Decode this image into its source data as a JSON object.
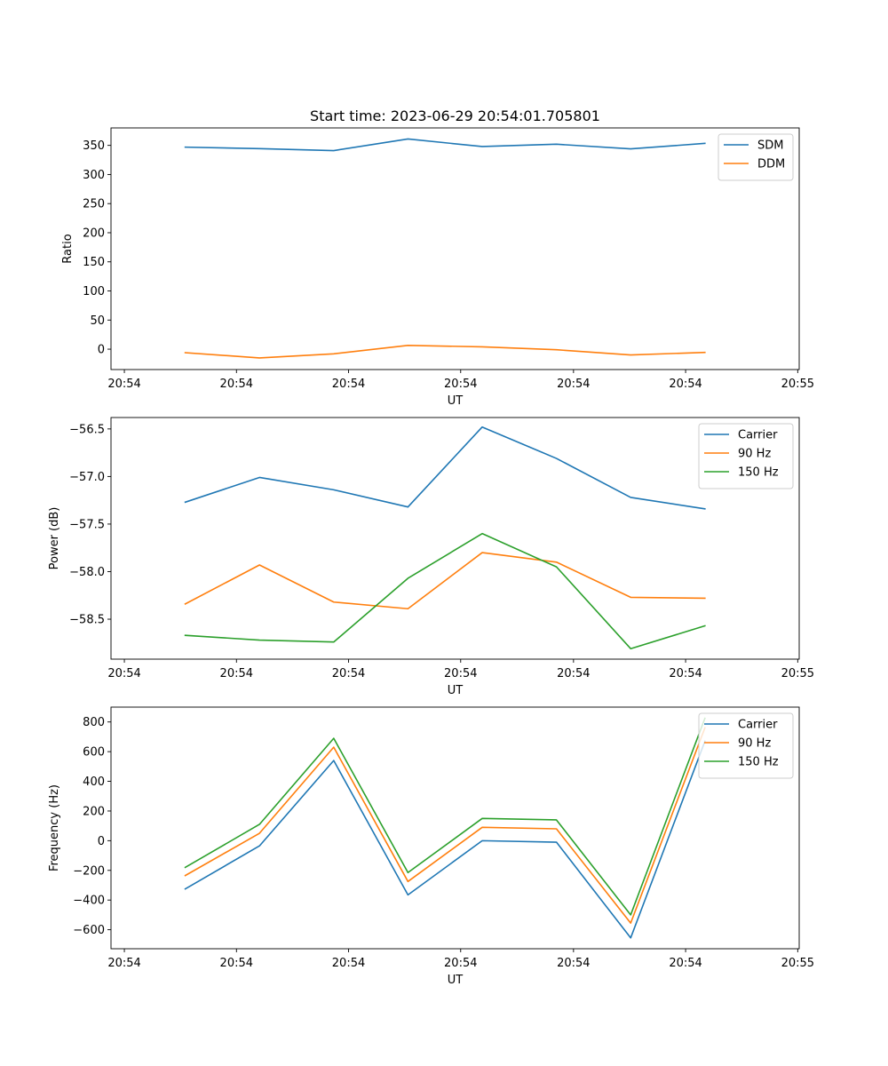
{
  "chart_data": [
    {
      "type": "line",
      "title": "Start time: 2023-06-29 20:54:01.705801",
      "xlabel": "UT",
      "ylabel": "Ratio",
      "x": [
        1,
        2,
        3,
        4,
        5,
        6,
        7,
        8
      ],
      "xlim": [
        0,
        9.27
      ],
      "x_ticks": [
        0.18,
        1.69,
        3.2,
        4.71,
        6.23,
        7.74,
        9.25
      ],
      "x_tick_labels": [
        "20:54",
        "20:54",
        "20:54",
        "20:54",
        "20:54",
        "20:54",
        "20:55"
      ],
      "ylim": [
        -35,
        380
      ],
      "y_ticks": [
        0,
        50,
        100,
        150,
        200,
        250,
        300,
        350
      ],
      "legend": "top-right",
      "grid": false,
      "series": [
        {
          "name": "SDM",
          "color": "#1f77b4",
          "values": [
            347,
            344.5,
            341,
            361,
            348,
            352,
            344,
            353.5
          ]
        },
        {
          "name": "DDM",
          "color": "#ff7f0e",
          "values": [
            -6,
            -15,
            -8,
            6.5,
            4,
            -1,
            -10,
            -5.5
          ]
        }
      ]
    },
    {
      "type": "line",
      "title": "",
      "xlabel": "UT",
      "ylabel": "Power (dB)",
      "x": [
        1,
        2,
        3,
        4,
        5,
        6,
        7,
        8
      ],
      "xlim": [
        0,
        9.27
      ],
      "x_ticks": [
        0.18,
        1.69,
        3.2,
        4.71,
        6.23,
        7.74,
        9.25
      ],
      "x_tick_labels": [
        "20:54",
        "20:54",
        "20:54",
        "20:54",
        "20:54",
        "20:54",
        "20:55"
      ],
      "ylim": [
        -58.92,
        -56.38
      ],
      "y_ticks": [
        -58.5,
        -58.0,
        -57.5,
        -57.0,
        -56.5
      ],
      "y_tick_labels": [
        "−58.5",
        "−58.0",
        "−57.5",
        "−57.0",
        "−56.5"
      ],
      "legend": "top-right",
      "grid": false,
      "series": [
        {
          "name": "Carrier",
          "color": "#1f77b4",
          "values": [
            -57.27,
            -57.01,
            -57.14,
            -57.32,
            -56.48,
            -56.81,
            -57.22,
            -57.34
          ]
        },
        {
          "name": "90 Hz",
          "color": "#ff7f0e",
          "values": [
            -58.34,
            -57.93,
            -58.32,
            -58.39,
            -57.8,
            -57.9,
            -58.27,
            -58.28
          ]
        },
        {
          "name": "150 Hz",
          "color": "#2ca02c",
          "values": [
            -58.67,
            -58.72,
            -58.74,
            -58.07,
            -57.6,
            -57.95,
            -58.81,
            -58.57
          ]
        }
      ]
    },
    {
      "type": "line",
      "title": "",
      "xlabel": "UT",
      "ylabel": "Frequency (Hz)",
      "x": [
        1,
        2,
        3,
        4,
        5,
        6,
        7,
        8
      ],
      "xlim": [
        0,
        9.27
      ],
      "x_ticks": [
        0.18,
        1.69,
        3.2,
        4.71,
        6.23,
        7.74,
        9.25
      ],
      "x_tick_labels": [
        "20:54",
        "20:54",
        "20:54",
        "20:54",
        "20:54",
        "20:54",
        "20:55"
      ],
      "ylim": [
        -728,
        900
      ],
      "y_ticks": [
        -600,
        -400,
        -200,
        0,
        200,
        400,
        600,
        800
      ],
      "y_tick_labels": [
        "−600",
        "−400",
        "−200",
        "0",
        "200",
        "400",
        "600",
        "800"
      ],
      "legend": "top-right",
      "grid": false,
      "series": [
        {
          "name": "Carrier",
          "color": "#1f77b4",
          "values": [
            -325,
            -35,
            540,
            -365,
            0,
            -10,
            -655,
            670
          ]
        },
        {
          "name": "90 Hz",
          "color": "#ff7f0e",
          "values": [
            -235,
            50,
            630,
            -275,
            90,
            80,
            -555,
            760
          ]
        },
        {
          "name": "150 Hz",
          "color": "#2ca02c",
          "values": [
            -180,
            110,
            690,
            -215,
            150,
            140,
            -500,
            825
          ]
        }
      ]
    }
  ]
}
